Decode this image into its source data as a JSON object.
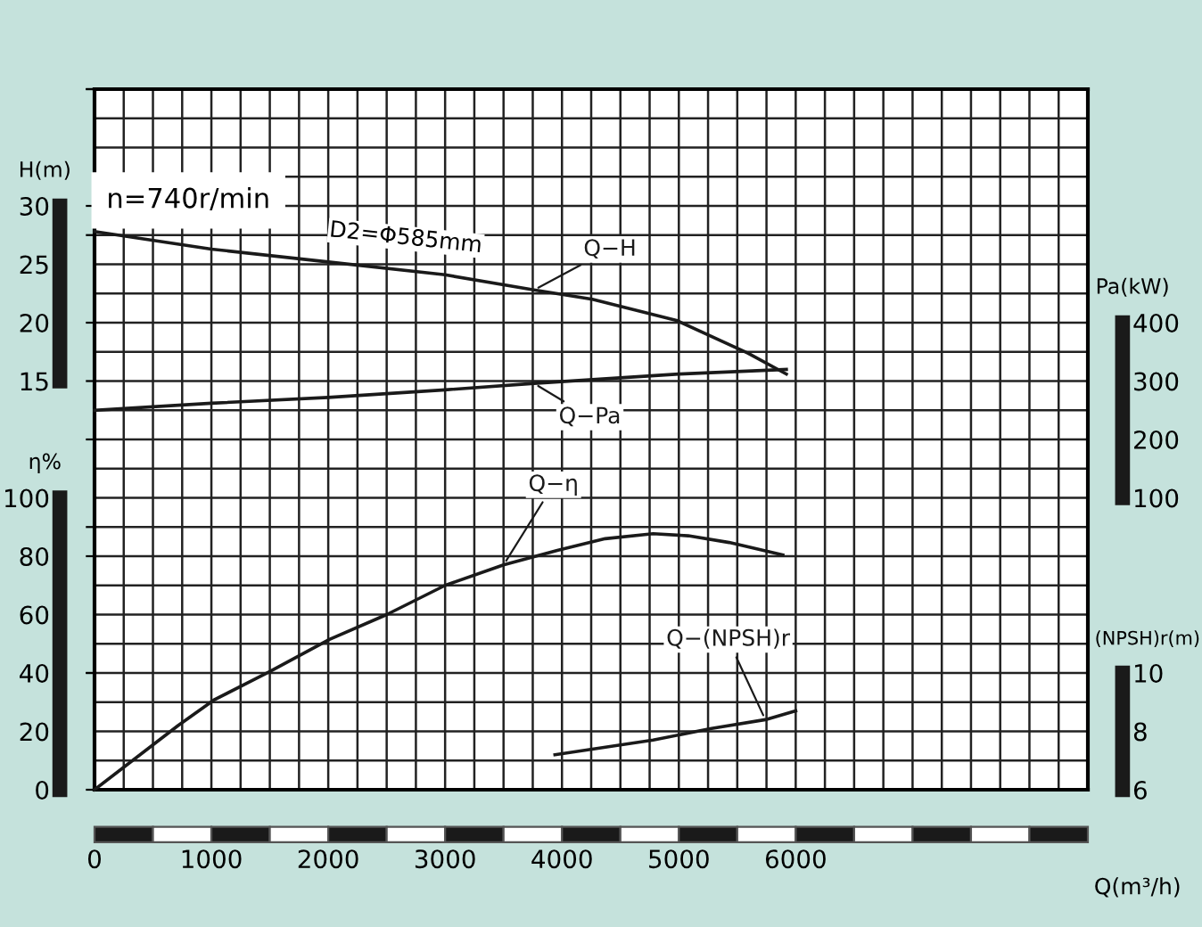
{
  "chart_data": [
    {
      "type": "line",
      "annotations": [
        "n=740r/min",
        "D2=Φ585mm"
      ],
      "xlabel": "Q(m³/h)",
      "ylabel": "H(m)",
      "y2label": "Pa(kW)",
      "y3label": "η%",
      "xlim": [
        0,
        8500
      ],
      "xticks": [
        0,
        1000,
        2000,
        3000,
        4000,
        5000,
        6000
      ],
      "ylim": [
        -20,
        40
      ],
      "yticks": [
        15,
        20,
        25,
        30
      ],
      "y2lim": [
        -400,
        800
      ],
      "y2ticks": [
        100,
        200,
        300,
        400
      ],
      "y3lim": [
        0,
        240
      ],
      "y3ticks": [
        0,
        20,
        40,
        60,
        80,
        100
      ],
      "grid": true,
      "marker": "none",
      "line_style": "solid",
      "series": [
        {
          "name": "Q−H",
          "color": "#1a1a1a",
          "axis": "y",
          "x": [
            0,
            1000,
            2000,
            3000,
            3760,
            4260,
            4980,
            5590,
            5920
          ],
          "values": [
            27.8,
            26.3,
            25.2,
            24.1,
            22.8,
            22.0,
            20.2,
            17.4,
            15.6
          ]
        },
        {
          "name": "Q−Pa",
          "color": "#1a1a1a",
          "axis": "y2",
          "x": [
            0,
            1000,
            2000,
            3000,
            3760,
            5000,
            5920
          ],
          "values": [
            250,
            262,
            272,
            285,
            296,
            312,
            320
          ]
        },
        {
          "name": "Q−η",
          "color": "#1a1a1a",
          "axis": "y3",
          "x": [
            0,
            715,
            1020,
            1500,
            2010,
            2500,
            3000,
            3500,
            3960,
            4370,
            4780,
            5080,
            5430,
            5890
          ],
          "values": [
            0,
            22,
            30.7,
            40.5,
            51.5,
            60,
            70,
            77,
            82,
            86,
            87.7,
            87,
            84.7,
            80.4
          ]
        }
      ]
    },
    {
      "type": "line",
      "ylabel": "(NPSH)r(m)",
      "xlim": [
        0,
        8500
      ],
      "ylim": [
        6,
        30
      ],
      "yticks": [
        6,
        8,
        10
      ],
      "tick_labels": "y",
      "marker": "none",
      "line_style": "solid",
      "series": [
        {
          "name": "Q−(NPSH)r",
          "color": "#1a1a1a",
          "x": [
            3940,
            4780,
            5280,
            5740,
            6000
          ],
          "values": [
            7.2,
            7.7,
            8.1,
            8.4,
            8.7
          ]
        }
      ]
    }
  ]
}
